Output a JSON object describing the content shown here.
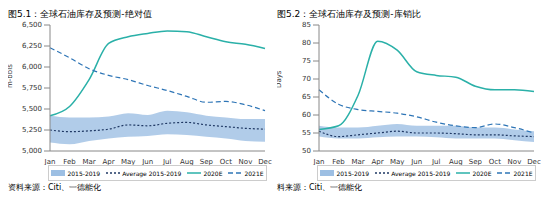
{
  "chart_data": [
    {
      "type": "line",
      "title": "图5.1：全球石油库存及预测-绝对值",
      "y_label": "m-bbls",
      "source": "资料来源：Citi、一德能化",
      "categories": [
        "Jan",
        "Feb",
        "Mar",
        "Apr",
        "May",
        "Jun",
        "Jul",
        "Aug",
        "Sep",
        "Oct",
        "Nov",
        "Dec"
      ],
      "ylim": [
        5000,
        6500
      ],
      "yticks": [
        {
          "value": 5000,
          "label": "5,000"
        },
        {
          "value": 5250,
          "label": "5,250"
        },
        {
          "value": 5500,
          "label": "5,500"
        },
        {
          "value": 5750,
          "label": "5,750"
        },
        {
          "value": 6000,
          "label": "6,000"
        },
        {
          "value": 6250,
          "label": "6,250"
        },
        {
          "value": 6500,
          "label": "6,500"
        }
      ],
      "grid": false,
      "legend": "bottom",
      "series": [
        {
          "name": "2015-2019",
          "type": "range",
          "color": "#9dbfe3",
          "low": [
            5100,
            5080,
            5120,
            5150,
            5170,
            5180,
            5200,
            5190,
            5170,
            5150,
            5120,
            5110
          ],
          "high": [
            5420,
            5400,
            5400,
            5410,
            5450,
            5430,
            5480,
            5460,
            5420,
            5400,
            5380,
            5380
          ]
        },
        {
          "name": "Average 2015-2019",
          "type": "line",
          "color": "#1f3864",
          "line_style": "dotted",
          "values": [
            5250,
            5230,
            5240,
            5260,
            5310,
            5300,
            5330,
            5340,
            5310,
            5290,
            5270,
            5260
          ]
        },
        {
          "name": "2020E",
          "type": "line",
          "color": "#2ab0a8",
          "line_style": "solid",
          "values": [
            5420,
            5530,
            5850,
            6280,
            6360,
            6400,
            6430,
            6420,
            6360,
            6300,
            6270,
            6220
          ]
        },
        {
          "name": "2021E",
          "type": "line",
          "color": "#2e75b6",
          "line_style": "dashed",
          "values": [
            6230,
            6110,
            5980,
            5900,
            5850,
            5780,
            5720,
            5650,
            5580,
            5590,
            5550,
            5480
          ]
        }
      ]
    },
    {
      "type": "line",
      "title": "图5.2：全球石油库存及预测-库销比",
      "y_label": "Days",
      "source": "料来源：Citi、一德能化",
      "categories": [
        "Jan",
        "Feb",
        "Mar",
        "Apr",
        "May",
        "Jun",
        "Jul",
        "Aug",
        "Sep",
        "Oct",
        "Nov",
        "Dec"
      ],
      "ylim": [
        50,
        85
      ],
      "yticks": [
        50,
        55,
        60,
        65,
        70,
        75,
        80,
        85
      ],
      "grid": false,
      "legend": "bottom",
      "series": [
        {
          "name": "2015-2019",
          "type": "range",
          "color": "#9dbfe3",
          "low": [
            54,
            53.5,
            53.5,
            53.8,
            54,
            54,
            53.8,
            53.5,
            53.5,
            53.5,
            53,
            52.5
          ],
          "high": [
            57,
            56.5,
            56.5,
            57,
            57.5,
            57,
            57,
            57,
            56.5,
            56.5,
            56,
            55.5
          ]
        },
        {
          "name": "Average 2015-2019",
          "type": "line",
          "color": "#1f3864",
          "line_style": "dotted",
          "values": [
            55.5,
            54,
            54.5,
            55,
            55.5,
            55,
            55,
            54.8,
            54.5,
            54.5,
            54.2,
            54
          ]
        },
        {
          "name": "2020E",
          "type": "line",
          "color": "#2ab0a8",
          "line_style": "solid",
          "values": [
            56,
            57,
            65.5,
            80.5,
            78,
            72,
            71,
            70.5,
            68,
            67,
            67,
            66.5
          ]
        },
        {
          "name": "2021E",
          "type": "line",
          "color": "#2e75b6",
          "line_style": "dashed",
          "values": [
            67,
            63,
            61.5,
            61,
            60.5,
            59.5,
            58,
            57,
            56.5,
            57.5,
            56.5,
            55
          ]
        }
      ]
    }
  ]
}
